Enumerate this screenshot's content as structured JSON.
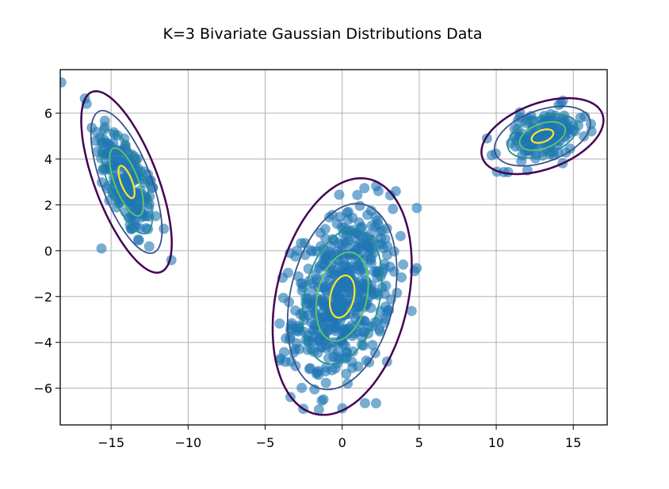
{
  "chart_data": {
    "type": "scatter",
    "title": "K=3 Bivariate Gaussian Distributions Data",
    "xlabel": "",
    "ylabel": "",
    "xlim": [
      -18.3,
      17.2
    ],
    "ylim": [
      -7.6,
      7.9
    ],
    "xticks": [
      -15,
      -10,
      -5,
      0,
      5,
      10,
      15
    ],
    "xtick_labels": [
      "−15",
      "−10",
      "−5",
      "0",
      "5",
      "10",
      "15"
    ],
    "yticks": [
      -6,
      -4,
      -2,
      0,
      2,
      4,
      6
    ],
    "ytick_labels": [
      "−6",
      "−4",
      "−2",
      "0",
      "2",
      "4",
      "6"
    ],
    "grid": true,
    "point_color": "#1f77b4",
    "point_alpha": 0.6,
    "contour_colors": [
      "#440154",
      "#3b528b",
      "#21918c",
      "#5ec962",
      "#fde725"
    ],
    "components": [
      {
        "mean": [
          -14.0,
          3.0
        ],
        "cov": [
          [
            1.1,
            -1.0
          ],
          [
            -1.0,
            2.0
          ]
        ],
        "n": 200
      },
      {
        "mean": [
          0.0,
          -2.0
        ],
        "cov": [
          [
            2.6,
            0.8
          ],
          [
            0.8,
            3.4
          ]
        ],
        "n": 500
      },
      {
        "mean": [
          13.0,
          5.0
        ],
        "cov": [
          [
            2.0,
            0.35
          ],
          [
            0.35,
            0.35
          ]
        ],
        "n": 150
      }
    ],
    "contour_radii": [
      2.8,
      2.2,
      1.6,
      1.05,
      0.5
    ],
    "contour_stroke_widths": [
      2.5,
      1.8,
      1.8,
      1.8,
      2.2
    ]
  }
}
